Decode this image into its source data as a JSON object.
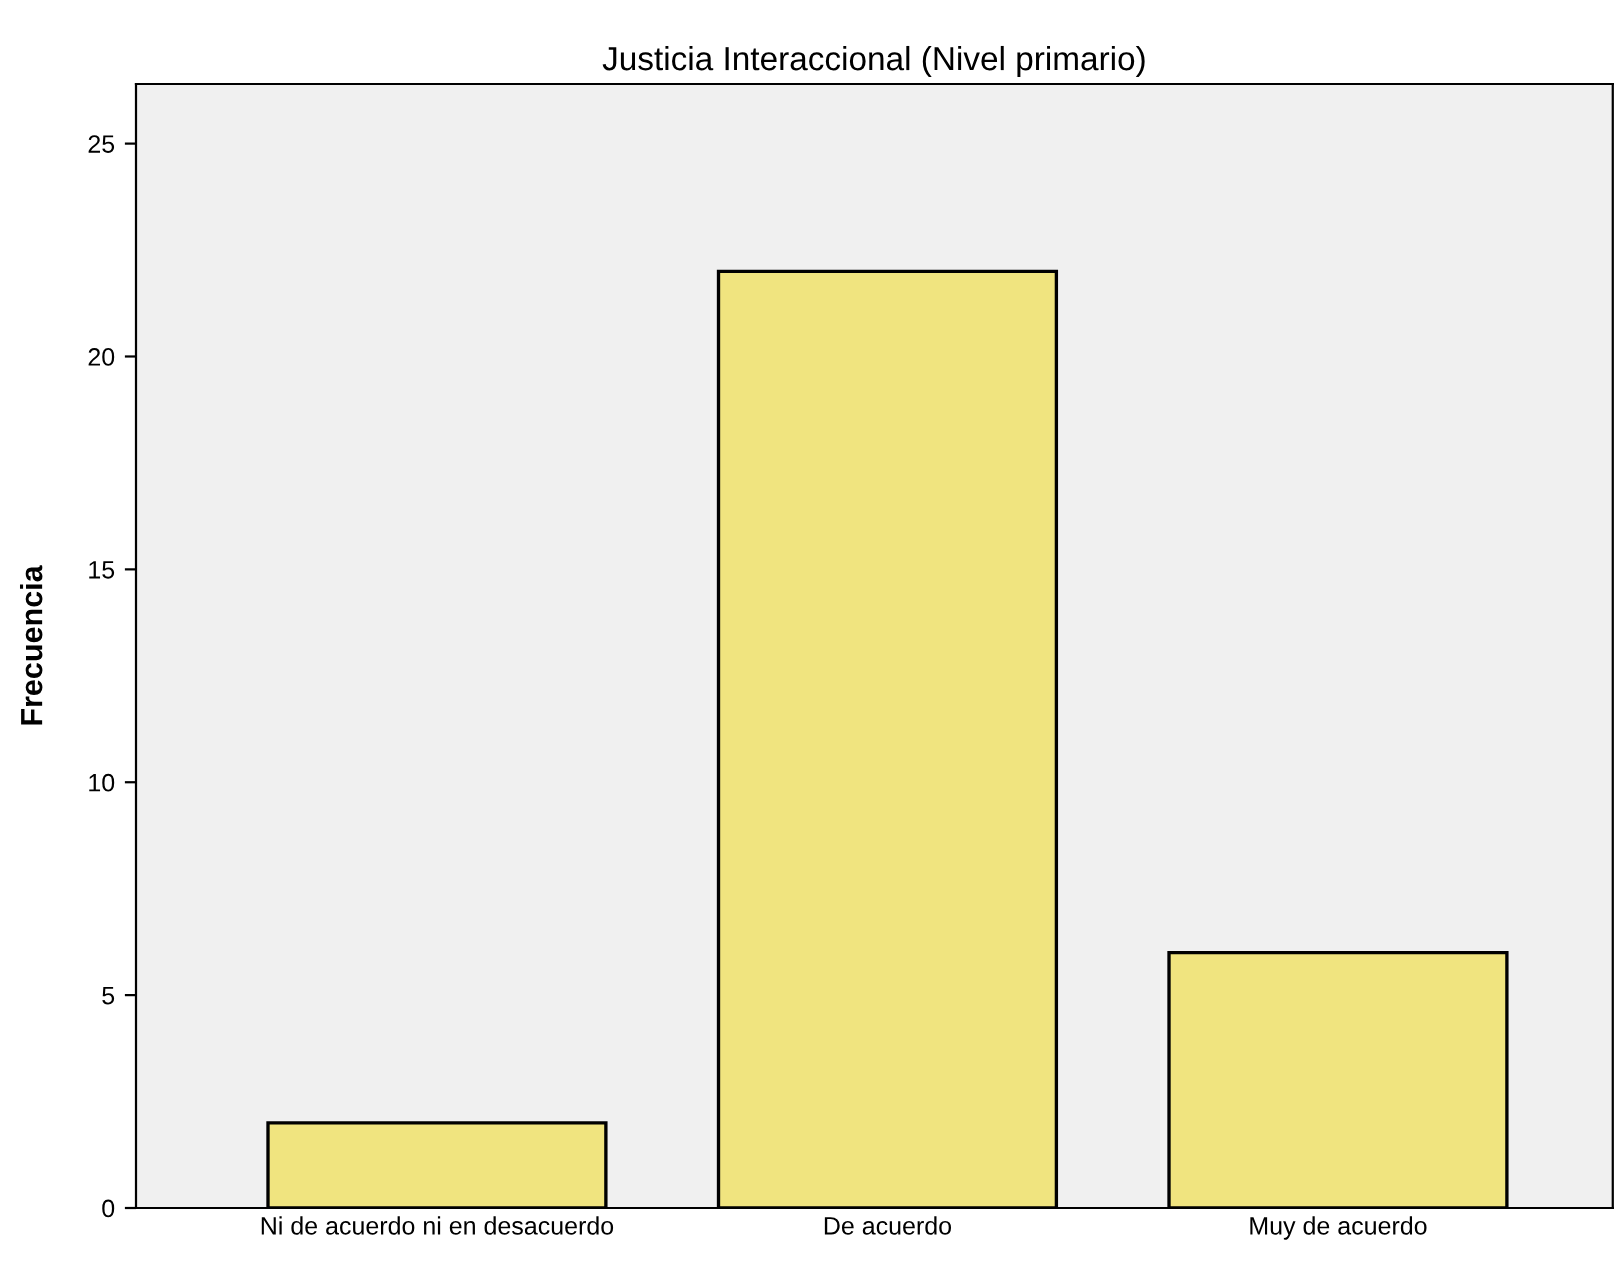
{
  "chart_data": {
    "type": "bar",
    "title": "Justicia Interaccional (Nivel primario)",
    "ylabel": "Frecuencia",
    "categories": [
      "Ni de acuerdo ni en desacuerdo",
      "De acuerdo",
      "Muy de acuerdo"
    ],
    "values": [
      2,
      22,
      6
    ],
    "color": "#f0e47f",
    "ylim": [
      0,
      26.4
    ],
    "yticks": [
      0,
      5,
      10,
      15,
      20,
      25
    ],
    "grid": false
  }
}
